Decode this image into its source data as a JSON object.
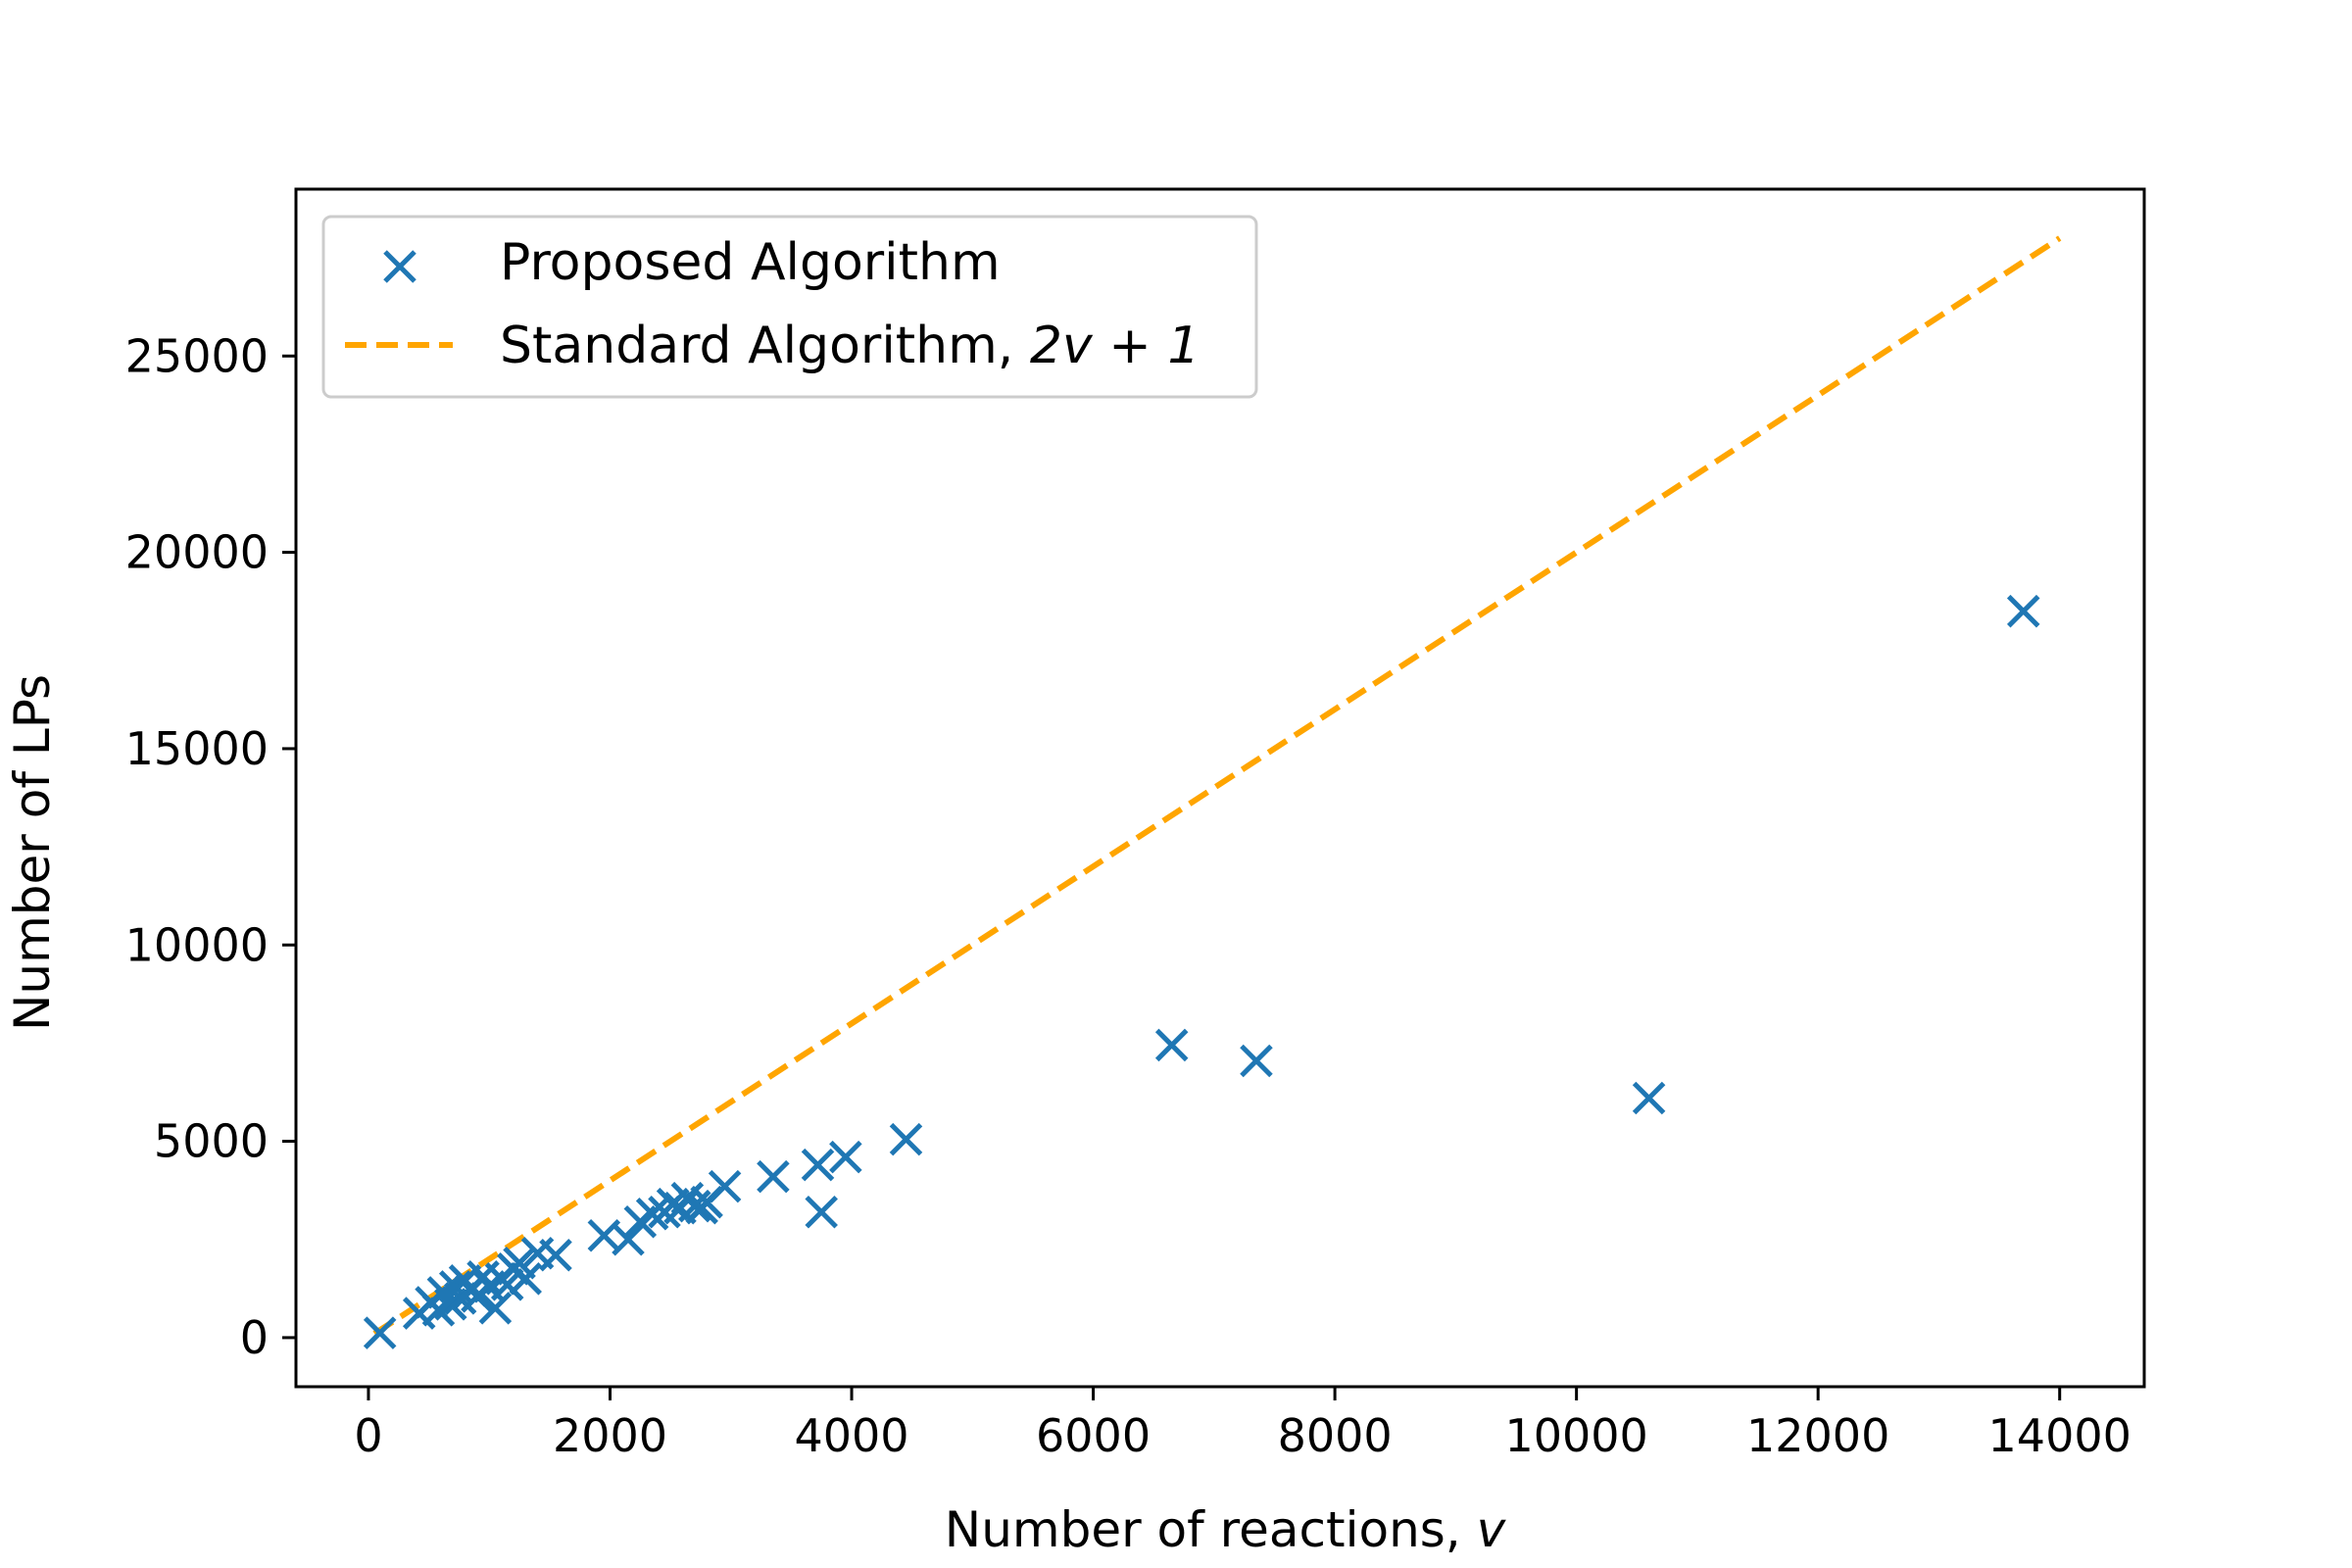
{
  "chart_data": {
    "type": "scatter",
    "title": "",
    "xlabel": "Number of reactions, ",
    "xlabel_var": "v",
    "ylabel": "Number of LPs",
    "xlim": [
      -600,
      14700
    ],
    "ylim": [
      -1250,
      29250
    ],
    "xticks": [
      0,
      2000,
      4000,
      6000,
      8000,
      10000,
      12000,
      14000
    ],
    "yticks": [
      0,
      5000,
      10000,
      15000,
      20000,
      25000
    ],
    "grid": false,
    "legend_position": "top-left",
    "series": [
      {
        "name": "Proposed Algorithm",
        "kind": "scatter",
        "marker": "x",
        "color": "#1f77b4",
        "points": [
          [
            95,
            120
          ],
          [
            420,
            620
          ],
          [
            520,
            900
          ],
          [
            580,
            700
          ],
          [
            620,
            1150
          ],
          [
            680,
            850
          ],
          [
            720,
            1300
          ],
          [
            760,
            1000
          ],
          [
            800,
            1450
          ],
          [
            850,
            1200
          ],
          [
            900,
            1050
          ],
          [
            950,
            1550
          ],
          [
            1000,
            1300
          ],
          [
            1050,
            750
          ],
          [
            1100,
            1500
          ],
          [
            1150,
            1350
          ],
          [
            1200,
            1750
          ],
          [
            1250,
            1900
          ],
          [
            1300,
            1500
          ],
          [
            1400,
            2150
          ],
          [
            1550,
            2100
          ],
          [
            1950,
            2600
          ],
          [
            2150,
            2500
          ],
          [
            2250,
            2950
          ],
          [
            2350,
            3150
          ],
          [
            2450,
            3200
          ],
          [
            2520,
            3400
          ],
          [
            2580,
            3300
          ],
          [
            2640,
            3550
          ],
          [
            2700,
            3350
          ],
          [
            2760,
            3300
          ],
          [
            2800,
            3450
          ],
          [
            2950,
            3850
          ],
          [
            3350,
            4100
          ],
          [
            3750,
            3200
          ],
          [
            3720,
            4400
          ],
          [
            3950,
            4600
          ],
          [
            4450,
            5050
          ],
          [
            6650,
            7450
          ],
          [
            7350,
            7050
          ],
          [
            10600,
            6100
          ],
          [
            13700,
            18500
          ]
        ]
      },
      {
        "name": "Standard Algorithm, ",
        "name_math": "2v + 1",
        "kind": "line",
        "style": "dashed",
        "color": "#ffa500",
        "x": [
          50,
          14000
        ],
        "y": [
          101,
          28001
        ]
      }
    ]
  }
}
